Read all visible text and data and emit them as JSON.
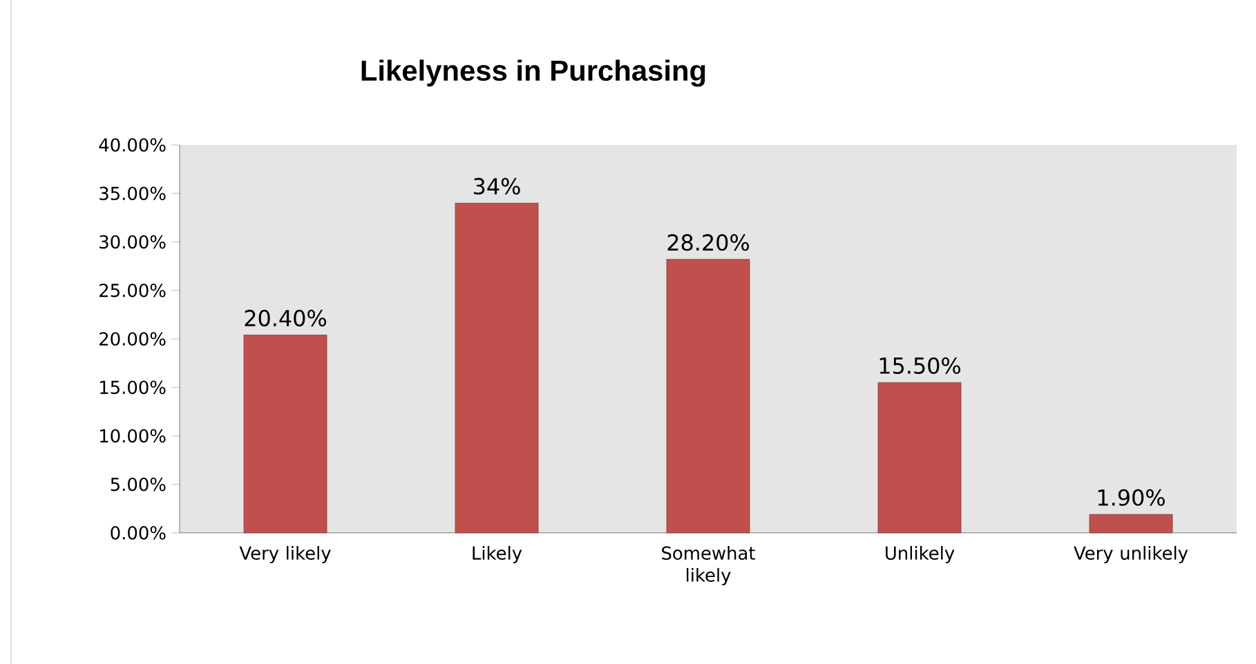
{
  "chart_data": {
    "type": "bar",
    "title": "Likelyness in Purchasing",
    "categories": [
      "Very likely",
      "Likely",
      "Somewhat likely",
      "Unlikely",
      "Very unlikely"
    ],
    "values": [
      20.4,
      34,
      28.2,
      15.5,
      1.9
    ],
    "value_labels": [
      "20.40%",
      "34%",
      "28.20%",
      "15.50%",
      "1.90%"
    ],
    "color": "#c0504d",
    "ylim": [
      0,
      40
    ],
    "yticks": [
      {
        "value": 0,
        "label": "0.00%"
      },
      {
        "value": 5,
        "label": "5.00%"
      },
      {
        "value": 10,
        "label": "10.00%"
      },
      {
        "value": 15,
        "label": "15.00%"
      },
      {
        "value": 20,
        "label": "20.00%"
      },
      {
        "value": 25,
        "label": "25.00%"
      },
      {
        "value": 30,
        "label": "30.00%"
      },
      {
        "value": 35,
        "label": "35.00%"
      },
      {
        "value": 40,
        "label": "40.00%"
      }
    ],
    "grid": false
  }
}
